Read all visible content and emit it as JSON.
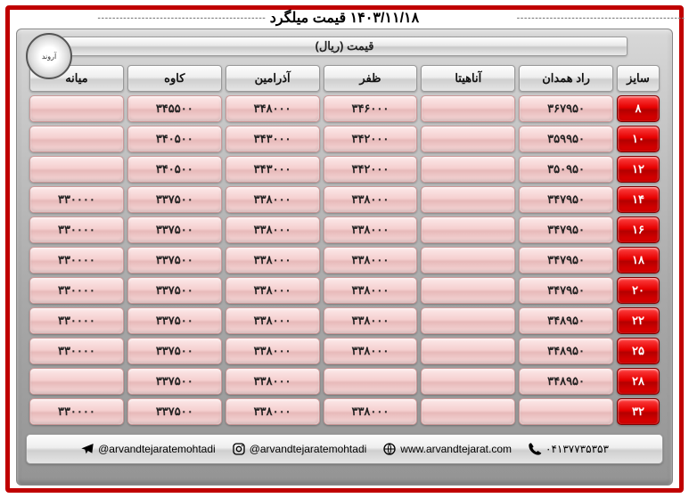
{
  "title": "۱۴۰۳/۱۱/۱۸ قیمت میلگرد",
  "subtitle": "قیمت (ریال)",
  "logo_text": "آروند",
  "columns": [
    "سایز",
    "راد همدان",
    "آناهیتا",
    "ظفر",
    "آذرامین",
    "کاوه",
    "میانه"
  ],
  "rows": [
    {
      "size": "۸",
      "cells": [
        "۳۶۷۹۵۰",
        "",
        "۳۴۶۰۰۰",
        "۳۴۸۰۰۰",
        "۳۴۵۵۰۰",
        ""
      ]
    },
    {
      "size": "۱۰",
      "cells": [
        "۳۵۹۹۵۰",
        "",
        "۳۴۲۰۰۰",
        "۳۴۳۰۰۰",
        "۳۴۰۵۰۰",
        ""
      ]
    },
    {
      "size": "۱۲",
      "cells": [
        "۳۵۰۹۵۰",
        "",
        "۳۴۲۰۰۰",
        "۳۴۳۰۰۰",
        "۳۴۰۵۰۰",
        ""
      ]
    },
    {
      "size": "۱۴",
      "cells": [
        "۳۴۷۹۵۰",
        "",
        "۳۳۸۰۰۰",
        "۳۳۸۰۰۰",
        "۳۳۷۵۰۰",
        "۳۳۰۰۰۰"
      ]
    },
    {
      "size": "۱۶",
      "cells": [
        "۳۴۷۹۵۰",
        "",
        "۳۳۸۰۰۰",
        "۳۳۸۰۰۰",
        "۳۳۷۵۰۰",
        "۳۳۰۰۰۰"
      ]
    },
    {
      "size": "۱۸",
      "cells": [
        "۳۴۷۹۵۰",
        "",
        "۳۳۸۰۰۰",
        "۳۳۸۰۰۰",
        "۳۳۷۵۰۰",
        "۳۳۰۰۰۰"
      ]
    },
    {
      "size": "۲۰",
      "cells": [
        "۳۴۷۹۵۰",
        "",
        "۳۳۸۰۰۰",
        "۳۳۸۰۰۰",
        "۳۳۷۵۰۰",
        "۳۳۰۰۰۰"
      ]
    },
    {
      "size": "۲۲",
      "cells": [
        "۳۴۸۹۵۰",
        "",
        "۳۳۸۰۰۰",
        "۳۳۸۰۰۰",
        "۳۳۷۵۰۰",
        "۳۳۰۰۰۰"
      ]
    },
    {
      "size": "۲۵",
      "cells": [
        "۳۴۸۹۵۰",
        "",
        "۳۳۸۰۰۰",
        "۳۳۸۰۰۰",
        "۳۳۷۵۰۰",
        "۳۳۰۰۰۰"
      ]
    },
    {
      "size": "۲۸",
      "cells": [
        "۳۴۸۹۵۰",
        "",
        "",
        "۳۳۸۰۰۰",
        "۳۳۷۵۰۰",
        ""
      ]
    },
    {
      "size": "۳۲",
      "cells": [
        "",
        "",
        "۳۳۸۰۰۰",
        "۳۳۸۰۰۰",
        "۳۳۷۵۰۰",
        "۳۳۰۰۰۰"
      ]
    }
  ],
  "footer": {
    "telegram": "@arvandtejaratemohtadi",
    "instagram": "@arvandtejaratemohtadi",
    "website": "www.arvandtejarat.com",
    "phone": "۰۴۱۳۷۷۳۵۳۵۳"
  },
  "colors": {
    "frame": "#c00000",
    "size_bg": "#e60000",
    "price_bg": "#f5d0d0",
    "panel_bg": "#b8b8b8"
  }
}
